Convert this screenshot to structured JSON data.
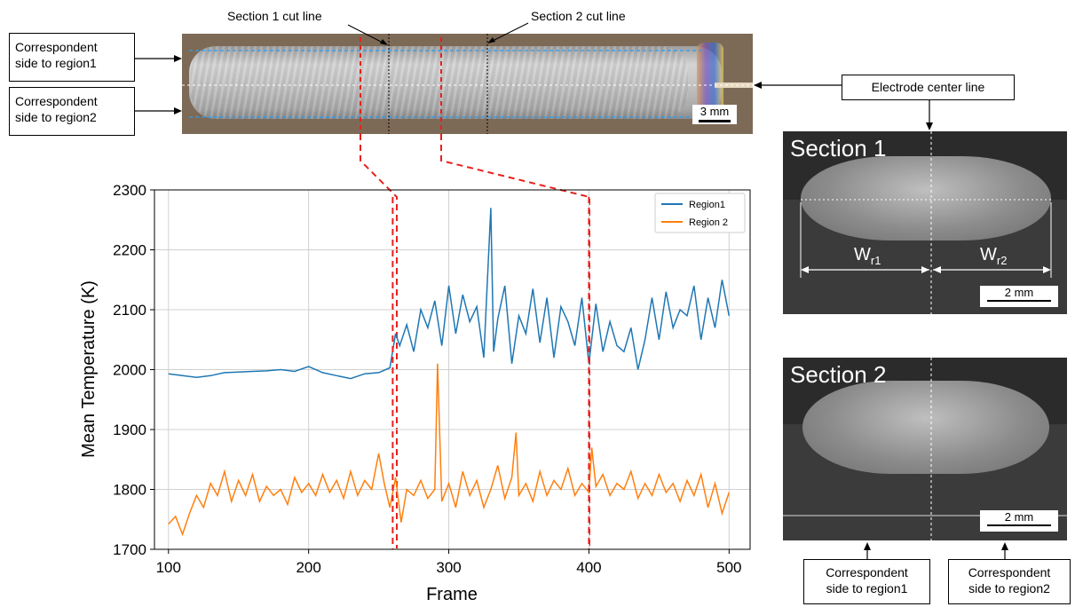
{
  "top_image": {
    "section1_cut_label": "Section 1 cut line",
    "section2_cut_label": "Section 2 cut line",
    "region1_label_line1": "Correspondent",
    "region1_label_line2": "side to region1",
    "region2_label_line1": "Correspondent",
    "region2_label_line2": "side to region2",
    "scale_label": "3 mm",
    "electrode_label": "Electrode center line"
  },
  "sections": {
    "section1_title": "Section 1",
    "section2_title": "Section 2",
    "wr1_base": "W",
    "wr1_sub": "r1",
    "wr2_base": "W",
    "wr2_sub": "r2",
    "scale1_label": "2 mm",
    "scale2_label": "2 mm",
    "bottom_left_line1": "Correspondent",
    "bottom_left_line2": "side to region1",
    "bottom_right_line1": "Correspondent",
    "bottom_right_line2": "side to region2"
  },
  "colors": {
    "region1": "#1f77b4",
    "region2": "#ff7f0e",
    "cut_line": "#e8201c",
    "guide_blue": "#2a9df4"
  },
  "chart_data": {
    "type": "line",
    "xlabel": "Frame",
    "ylabel": "Mean Temperature (K)",
    "xlim": [
      90,
      515
    ],
    "ylim": [
      1700,
      2300
    ],
    "x_ticks": [
      "100",
      "200",
      "300",
      "400",
      "500"
    ],
    "y_ticks": [
      "1700",
      "1800",
      "1900",
      "2000",
      "2100",
      "2200",
      "2300"
    ],
    "grid": true,
    "legend_position": "top-right",
    "vertical_markers": [
      260,
      400
    ],
    "series": [
      {
        "name": "Region1",
        "x": [
          100,
          110,
          120,
          130,
          140,
          150,
          160,
          170,
          180,
          190,
          200,
          210,
          220,
          230,
          240,
          250,
          255,
          258,
          262,
          265,
          270,
          275,
          280,
          285,
          290,
          295,
          300,
          305,
          310,
          315,
          320,
          325,
          330,
          332,
          335,
          340,
          345,
          350,
          355,
          360,
          365,
          370,
          375,
          380,
          385,
          390,
          395,
          400,
          405,
          410,
          415,
          420,
          425,
          430,
          435,
          440,
          445,
          450,
          455,
          460,
          465,
          470,
          475,
          480,
          485,
          490,
          495,
          500
        ],
        "values": [
          1993,
          1990,
          1987,
          1990,
          1995,
          1996,
          1997,
          1998,
          2000,
          1997,
          2005,
          1995,
          1990,
          1985,
          1993,
          1995,
          2000,
          2003,
          2060,
          2040,
          2075,
          2030,
          2100,
          2070,
          2115,
          2040,
          2140,
          2060,
          2125,
          2080,
          2105,
          2020,
          2270,
          2030,
          2085,
          2140,
          2010,
          2090,
          2060,
          2135,
          2045,
          2120,
          2020,
          2105,
          2080,
          2040,
          2120,
          2010,
          2110,
          2030,
          2080,
          2040,
          2030,
          2070,
          2000,
          2050,
          2120,
          2050,
          2130,
          2070,
          2100,
          2090,
          2140,
          2050,
          2120,
          2070,
          2150,
          2090
        ]
      },
      {
        "name": "Region 2",
        "x": [
          100,
          105,
          110,
          115,
          120,
          125,
          130,
          135,
          140,
          145,
          150,
          155,
          160,
          165,
          170,
          175,
          180,
          185,
          190,
          195,
          200,
          205,
          210,
          215,
          220,
          225,
          230,
          235,
          240,
          245,
          250,
          254,
          258,
          262,
          266,
          270,
          275,
          280,
          285,
          290,
          292,
          295,
          300,
          305,
          310,
          315,
          320,
          325,
          330,
          335,
          340,
          345,
          348,
          350,
          355,
          360,
          365,
          370,
          375,
          380,
          385,
          390,
          395,
          400,
          402,
          405,
          410,
          415,
          420,
          425,
          430,
          435,
          440,
          445,
          450,
          455,
          460,
          465,
          470,
          475,
          480,
          485,
          490,
          495,
          500
        ],
        "values": [
          1742,
          1755,
          1725,
          1760,
          1790,
          1770,
          1810,
          1790,
          1830,
          1780,
          1815,
          1790,
          1825,
          1780,
          1805,
          1790,
          1800,
          1775,
          1820,
          1795,
          1810,
          1790,
          1825,
          1795,
          1815,
          1785,
          1830,
          1790,
          1815,
          1800,
          1860,
          1810,
          1770,
          1820,
          1745,
          1800,
          1790,
          1815,
          1785,
          1800,
          2010,
          1780,
          1810,
          1770,
          1830,
          1790,
          1815,
          1770,
          1800,
          1840,
          1785,
          1820,
          1895,
          1790,
          1810,
          1780,
          1830,
          1790,
          1815,
          1800,
          1835,
          1790,
          1810,
          1795,
          1870,
          1805,
          1825,
          1790,
          1810,
          1800,
          1830,
          1785,
          1810,
          1790,
          1825,
          1795,
          1810,
          1780,
          1815,
          1790,
          1825,
          1770,
          1810,
          1760,
          1795
        ]
      }
    ]
  }
}
